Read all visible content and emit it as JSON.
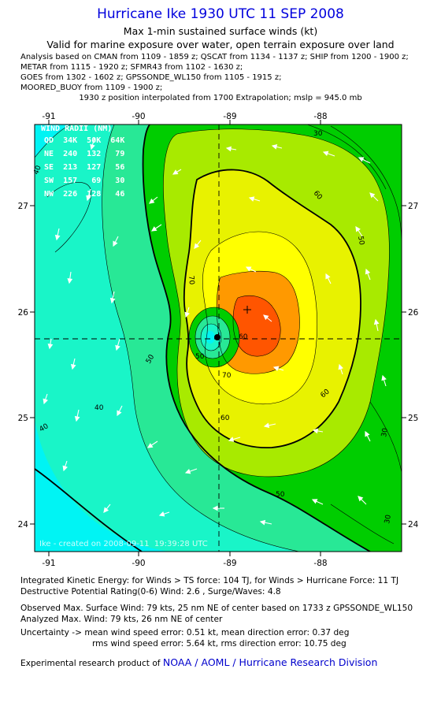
{
  "header": {
    "title": "Hurricane Ike 1930 UTC 11 SEP 2008",
    "subtitle": "Max 1-min sustained surface winds (kt)",
    "validity": "Valid for marine exposure over water, open terrain exposure over land",
    "analysis_lines": [
      "Analysis based on  CMAN from 1109 - 1859 z;  QSCAT from 1134 - 1137 z;  SHIP from 1200 - 1900 z;",
      "METAR from 1115 - 1920 z;  SFMR43 from 1102 - 1630 z;",
      "GOES from 1302 - 1602 z;  GPSSONDE_WL150 from 1105 - 1915 z;",
      "MOORED_BUOY from 1109 - 1900 z;"
    ],
    "position_note": "1930 z position interpolated from 1700 Extrapolation; mslp = 945.0 mb"
  },
  "map": {
    "lon_ticks": [
      "-91",
      "-90",
      "-89",
      "-88"
    ],
    "lat_ticks": [
      "27",
      "26",
      "25",
      "24"
    ],
    "contour_labels": [
      "30",
      "40",
      "50",
      "60",
      "70",
      "30",
      "40",
      "50",
      "60",
      "50",
      "60",
      "70",
      "30",
      "40",
      "50",
      "60"
    ],
    "wind_radii": {
      "title": "WIND RADII (NM)",
      "header": "QD  34K  50K  64K",
      "rows": [
        "NE  240  132   79",
        "SE  213  127   56",
        "SW  157   69   30",
        "NW  226  128   46"
      ]
    },
    "credit": "Ike - created on 2008-09-11  19:39:28 UTC",
    "colors": {
      "band_lt30": "#00f4f4",
      "band_30_40": "#19f5c8",
      "band_40_50": "#28e896",
      "band_50_60": "#00cd00",
      "band_60_70": "#a8ea00",
      "band_70_80": "#e8f200",
      "band_80_90": "#ffff00",
      "band_90_100": "#ff9900",
      "band_100_plus": "#ff5500",
      "title_blue": "#0000dd"
    }
  },
  "footer": {
    "lines": [
      "Integrated Kinetic Energy:  for Winds > TS force: 104 TJ,  for Winds > Hurricane Force: 11 TJ",
      "Destructive Potential Rating(0-6)   Wind: 2.6 , Surge/Waves: 4.8",
      "Observed Max. Surface Wind: 79 kts, 25 nm NE of center based on 1733 z GPSSONDE_WL150",
      "Analyzed Max. Wind: 79 kts, 26 nm NE of center",
      "Uncertainty -> mean wind speed error: 0.51 kt,   mean direction error: 0.37 deg",
      "rms wind speed error: 5.64 kt,   rms direction error: 10.75 deg"
    ],
    "product_prefix": "Experimental research product of ",
    "product_link": "NOAA / AOML / Hurricane Research Division"
  }
}
